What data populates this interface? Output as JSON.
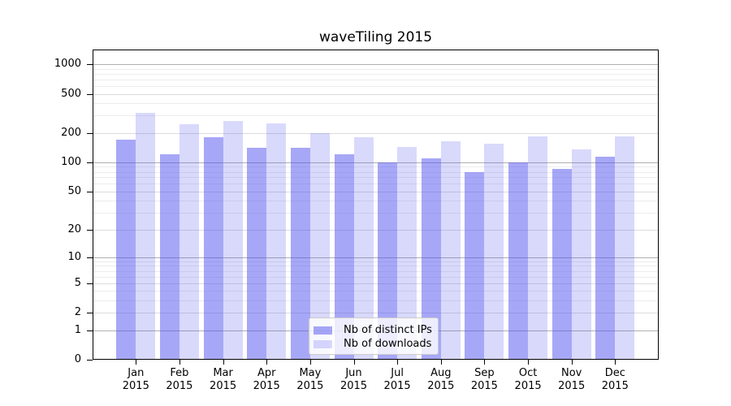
{
  "title": "waveTiling 2015",
  "chart_data": {
    "type": "bar",
    "title": "waveTiling 2015",
    "categories": [
      "Jan 2015",
      "Feb 2015",
      "Mar 2015",
      "Apr 2015",
      "May 2015",
      "Jun 2015",
      "Jul 2015",
      "Aug 2015",
      "Sep 2015",
      "Oct 2015",
      "Nov 2015",
      "Dec 2015"
    ],
    "series": [
      {
        "name": "Nb of distinct IPs",
        "color": "rgba(80,80,240,0.50)",
        "values": [
          170,
          120,
          180,
          140,
          140,
          120,
          100,
          110,
          80,
          100,
          85,
          115
        ]
      },
      {
        "name": "Nb of downloads",
        "color": "rgba(80,80,240,0.22)",
        "values": [
          320,
          245,
          265,
          250,
          200,
          180,
          145,
          165,
          155,
          185,
          135,
          185
        ]
      }
    ],
    "y_ticks": [
      0,
      1,
      2,
      5,
      10,
      20,
      50,
      100,
      200,
      500,
      1000
    ],
    "y_scale": "log10(1+x)",
    "ylim": [
      0,
      1380
    ],
    "xlabel": "",
    "ylabel": "",
    "grid": true,
    "legend_position": "lower center"
  },
  "colors": {
    "axis": "#000000",
    "grid_major": "#b0b0b0",
    "grid_labeled": "#dcdcdc",
    "grid_minor": "#ececec",
    "legend_bg": "rgba(255,255,255,0.8)",
    "legend_border": "#cccccc",
    "ips_bar": "rgba(80,80,240,0.50)",
    "downloads_bar": "rgba(80,80,240,0.22)"
  }
}
